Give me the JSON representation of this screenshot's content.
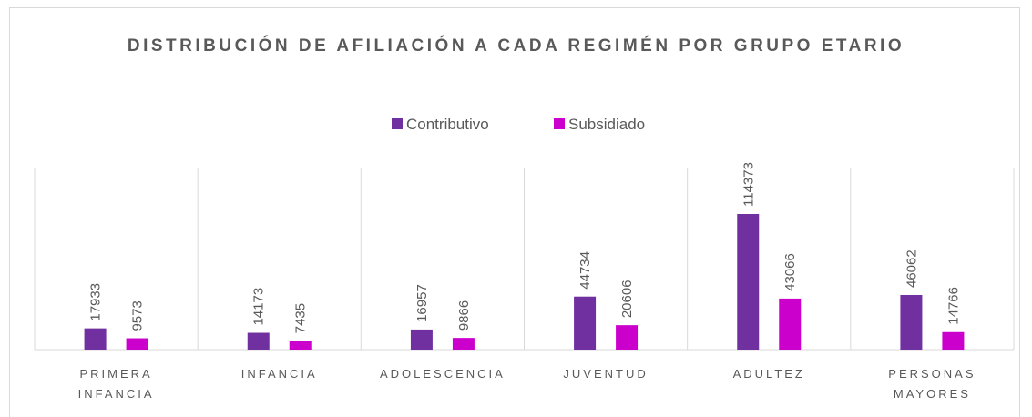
{
  "chart_data": {
    "type": "bar",
    "title": "DISTRIBUCIÓN DE AFILIACIÓN A CADA REGIMÉN POR GRUPO ETARIO",
    "categories": [
      "PRIMERA INFANCIA",
      "INFANCIA",
      "ADOLESCENCIA",
      "JUVENTUD",
      "ADULTEZ",
      "PERSONAS MAYORES"
    ],
    "series": [
      {
        "name": "Contributivo",
        "color": "#7030a0",
        "values": [
          17933,
          14173,
          16957,
          44734,
          114373,
          46062
        ]
      },
      {
        "name": "Subsidiado",
        "color": "#cc00cc",
        "values": [
          9573,
          7435,
          9866,
          20606,
          43066,
          14766
        ]
      }
    ],
    "legend": "top"
  }
}
